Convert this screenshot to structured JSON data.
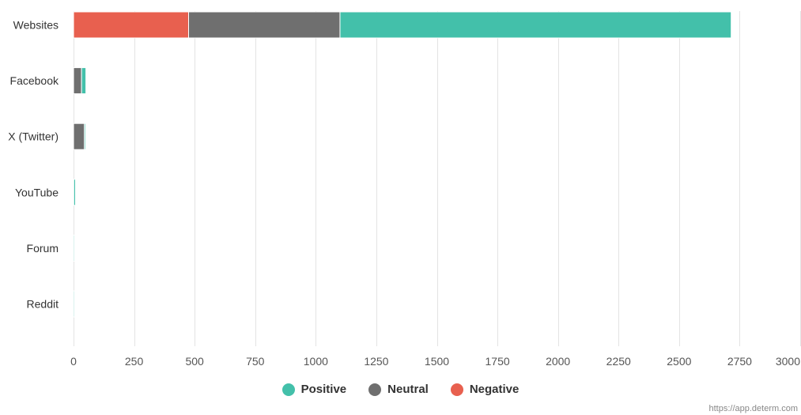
{
  "chart_data": {
    "type": "bar",
    "orientation": "horizontal",
    "stacked": true,
    "categories": [
      "Websites",
      "Facebook",
      "X (Twitter)",
      "YouTube",
      "Forum",
      "Reddit"
    ],
    "series": [
      {
        "name": "Negative",
        "color": "#e8604f",
        "values": [
          475,
          0,
          0,
          0,
          0,
          0
        ]
      },
      {
        "name": "Neutral",
        "color": "#6f6f6f",
        "values": [
          625,
          33,
          45,
          1,
          0,
          0
        ]
      },
      {
        "name": "Positive",
        "color": "#43c0aa",
        "values": [
          1615,
          18,
          5,
          7,
          1,
          1
        ]
      }
    ],
    "xlim": [
      0,
      3000
    ],
    "xticks": [
      0,
      250,
      500,
      750,
      1000,
      1250,
      1500,
      1750,
      2000,
      2250,
      2500,
      2750,
      3000
    ],
    "grid": true,
    "legend": {
      "position": "bottom",
      "items": [
        {
          "name": "Positive",
          "color": "#43c0aa"
        },
        {
          "name": "Neutral",
          "color": "#6f6f6f"
        },
        {
          "name": "Negative",
          "color": "#e8604f"
        }
      ]
    }
  },
  "credit": "https://app.determ.com"
}
